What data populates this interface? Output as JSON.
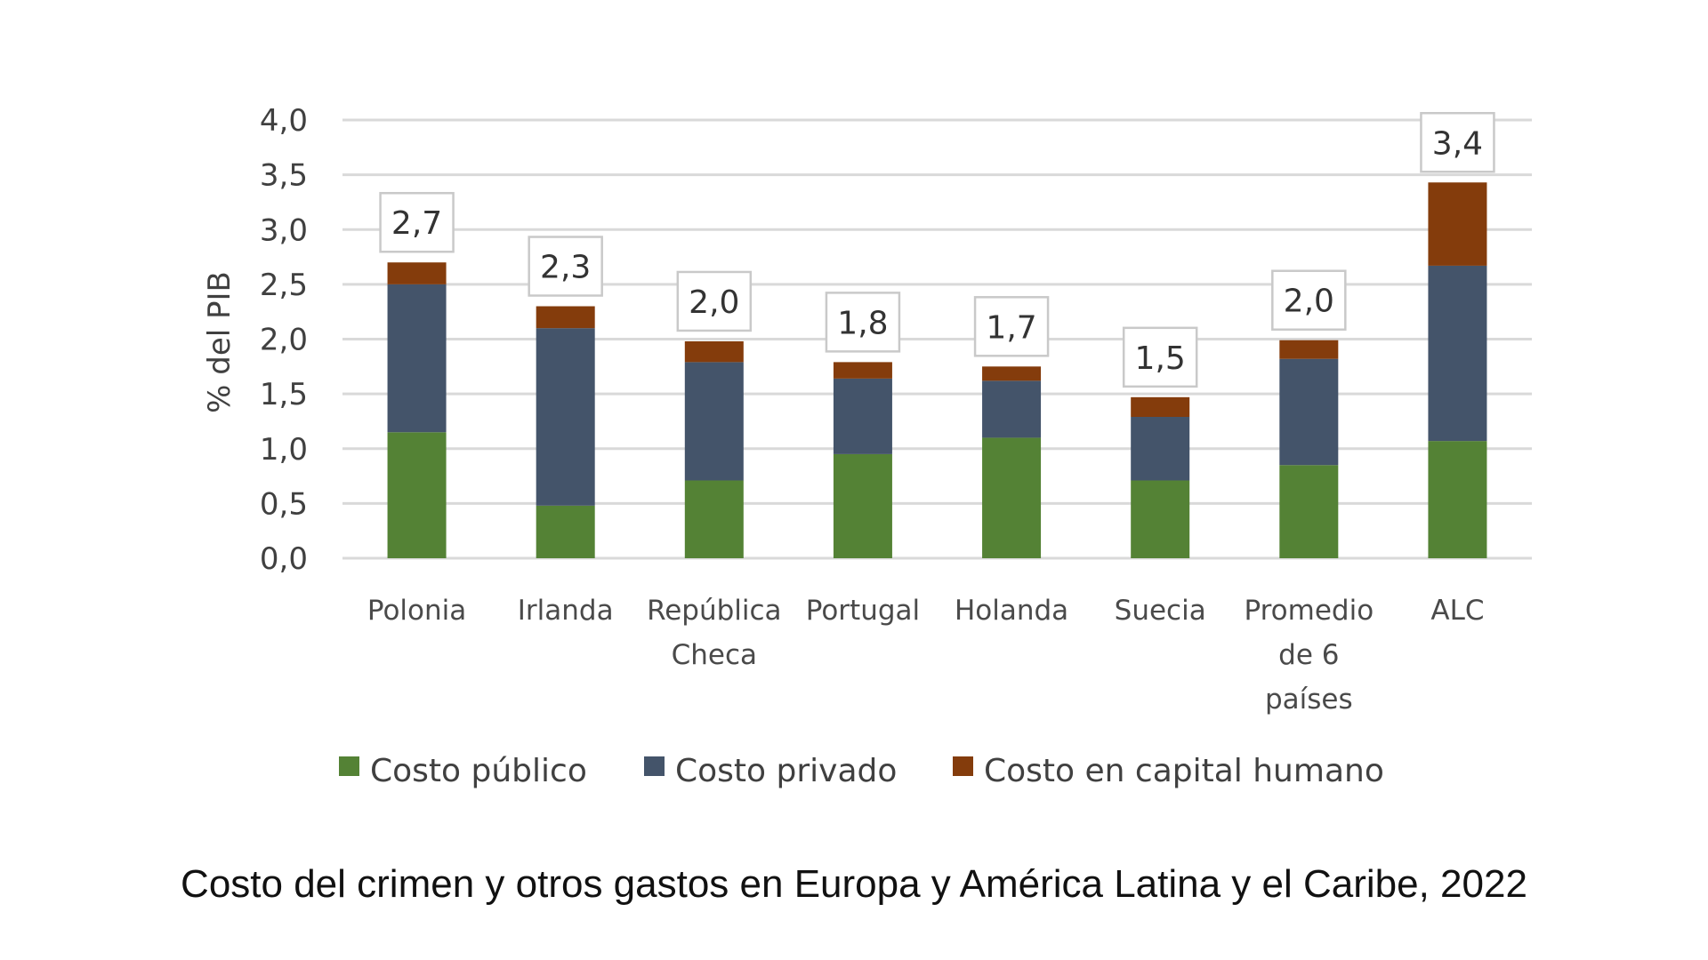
{
  "caption": "Costo del crimen y otros gastos en Europa y América Latina y el Caribe, 2022",
  "chart_data": {
    "type": "bar",
    "stacked": true,
    "title": "Costo del crimen y otros gastos en Europa y América Latina y el Caribe, 2022",
    "xlabel": "",
    "ylabel": "% del PIB",
    "ylim": [
      0,
      4.0
    ],
    "yticks": [
      0,
      0.5,
      1.0,
      1.5,
      2.0,
      2.5,
      3.0,
      3.5,
      4.0
    ],
    "ytick_labels": [
      "0,0",
      "0,5",
      "1,0",
      "1,5",
      "2,0",
      "2,5",
      "3,0",
      "3,5",
      "4,0"
    ],
    "grid": true,
    "legend_position": "bottom",
    "categories": [
      [
        "Polonia"
      ],
      [
        "Irlanda"
      ],
      [
        "República",
        "Checa"
      ],
      [
        "Portugal"
      ],
      [
        "Holanda"
      ],
      [
        "Suecia"
      ],
      [
        "Promedio",
        "de 6",
        "países"
      ],
      [
        "ALC"
      ]
    ],
    "series": [
      {
        "name": "Costo público",
        "color": "#548235",
        "values": [
          1.15,
          0.48,
          0.71,
          0.95,
          1.1,
          0.71,
          0.85,
          1.07
        ]
      },
      {
        "name": "Costo privado",
        "color": "#44546a",
        "values": [
          1.35,
          1.62,
          1.08,
          0.69,
          0.52,
          0.58,
          0.97,
          1.6
        ]
      },
      {
        "name": "Costo en capital humano",
        "color": "#843c0c",
        "values": [
          0.2,
          0.2,
          0.19,
          0.15,
          0.13,
          0.18,
          0.17,
          0.76
        ]
      }
    ],
    "totals": [
      2.7,
      2.3,
      2.0,
      1.8,
      1.7,
      1.5,
      2.0,
      3.4
    ],
    "total_labels": [
      "2,7",
      "2,3",
      "2,0",
      "1,8",
      "1,7",
      "1,5",
      "2,0",
      "3,4"
    ]
  }
}
